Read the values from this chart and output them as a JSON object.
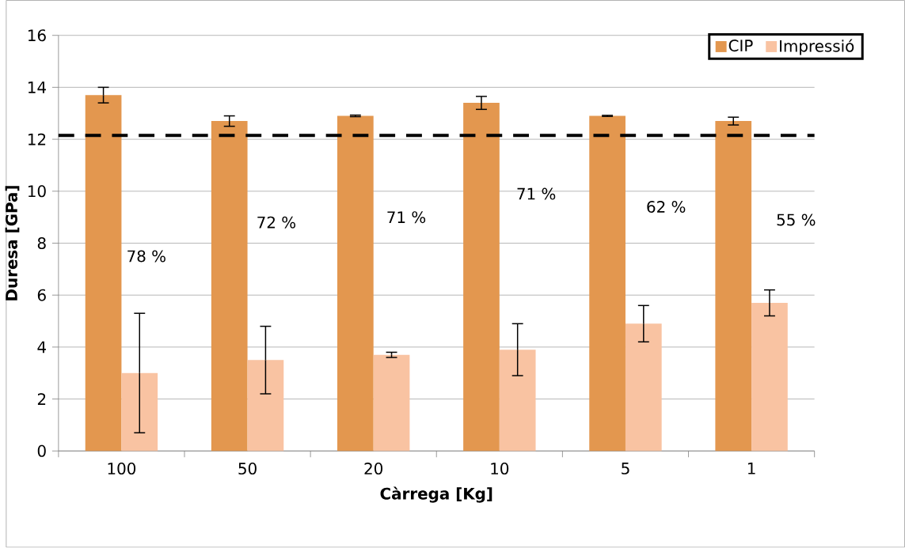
{
  "chart_data": {
    "type": "bar",
    "xlabel": "Càrrega [Kg]",
    "ylabel": "Duresa [GPa]",
    "categories": [
      "100",
      "50",
      "20",
      "10",
      "5",
      "1"
    ],
    "series": [
      {
        "name": "CIP",
        "color": "#e3974f",
        "values": [
          13.7,
          12.7,
          12.9,
          13.4,
          12.9,
          12.7
        ],
        "errors": [
          0.3,
          0.2,
          0.03,
          0.25,
          0.02,
          0.15
        ]
      },
      {
        "name": "Impressió",
        "color": "#f9c3a2",
        "values": [
          3.0,
          3.5,
          3.7,
          3.9,
          4.9,
          5.7
        ],
        "errors": [
          2.3,
          1.3,
          0.1,
          1.0,
          0.7,
          0.5
        ]
      }
    ],
    "ylim": [
      0,
      16
    ],
    "yticks": [
      0,
      2,
      4,
      6,
      8,
      10,
      12,
      14,
      16
    ],
    "grid": "y",
    "legend": "top right",
    "ref_lines": [
      {
        "axis": "y",
        "value": 12.15,
        "color": "#000000",
        "line_style": "dashed"
      }
    ],
    "annotations": [
      {
        "text": "78 %",
        "x": "100",
        "y": 7.5
      },
      {
        "text": "72 %",
        "x": "50",
        "y": 8.8
      },
      {
        "text": "71 %",
        "x": "20",
        "y": 9.0
      },
      {
        "text": "71 %",
        "x": "10",
        "y": 9.9
      },
      {
        "text": "62 %",
        "x": "5",
        "y": 9.4
      },
      {
        "text": "55 %",
        "x": "1",
        "y": 8.9
      }
    ]
  }
}
